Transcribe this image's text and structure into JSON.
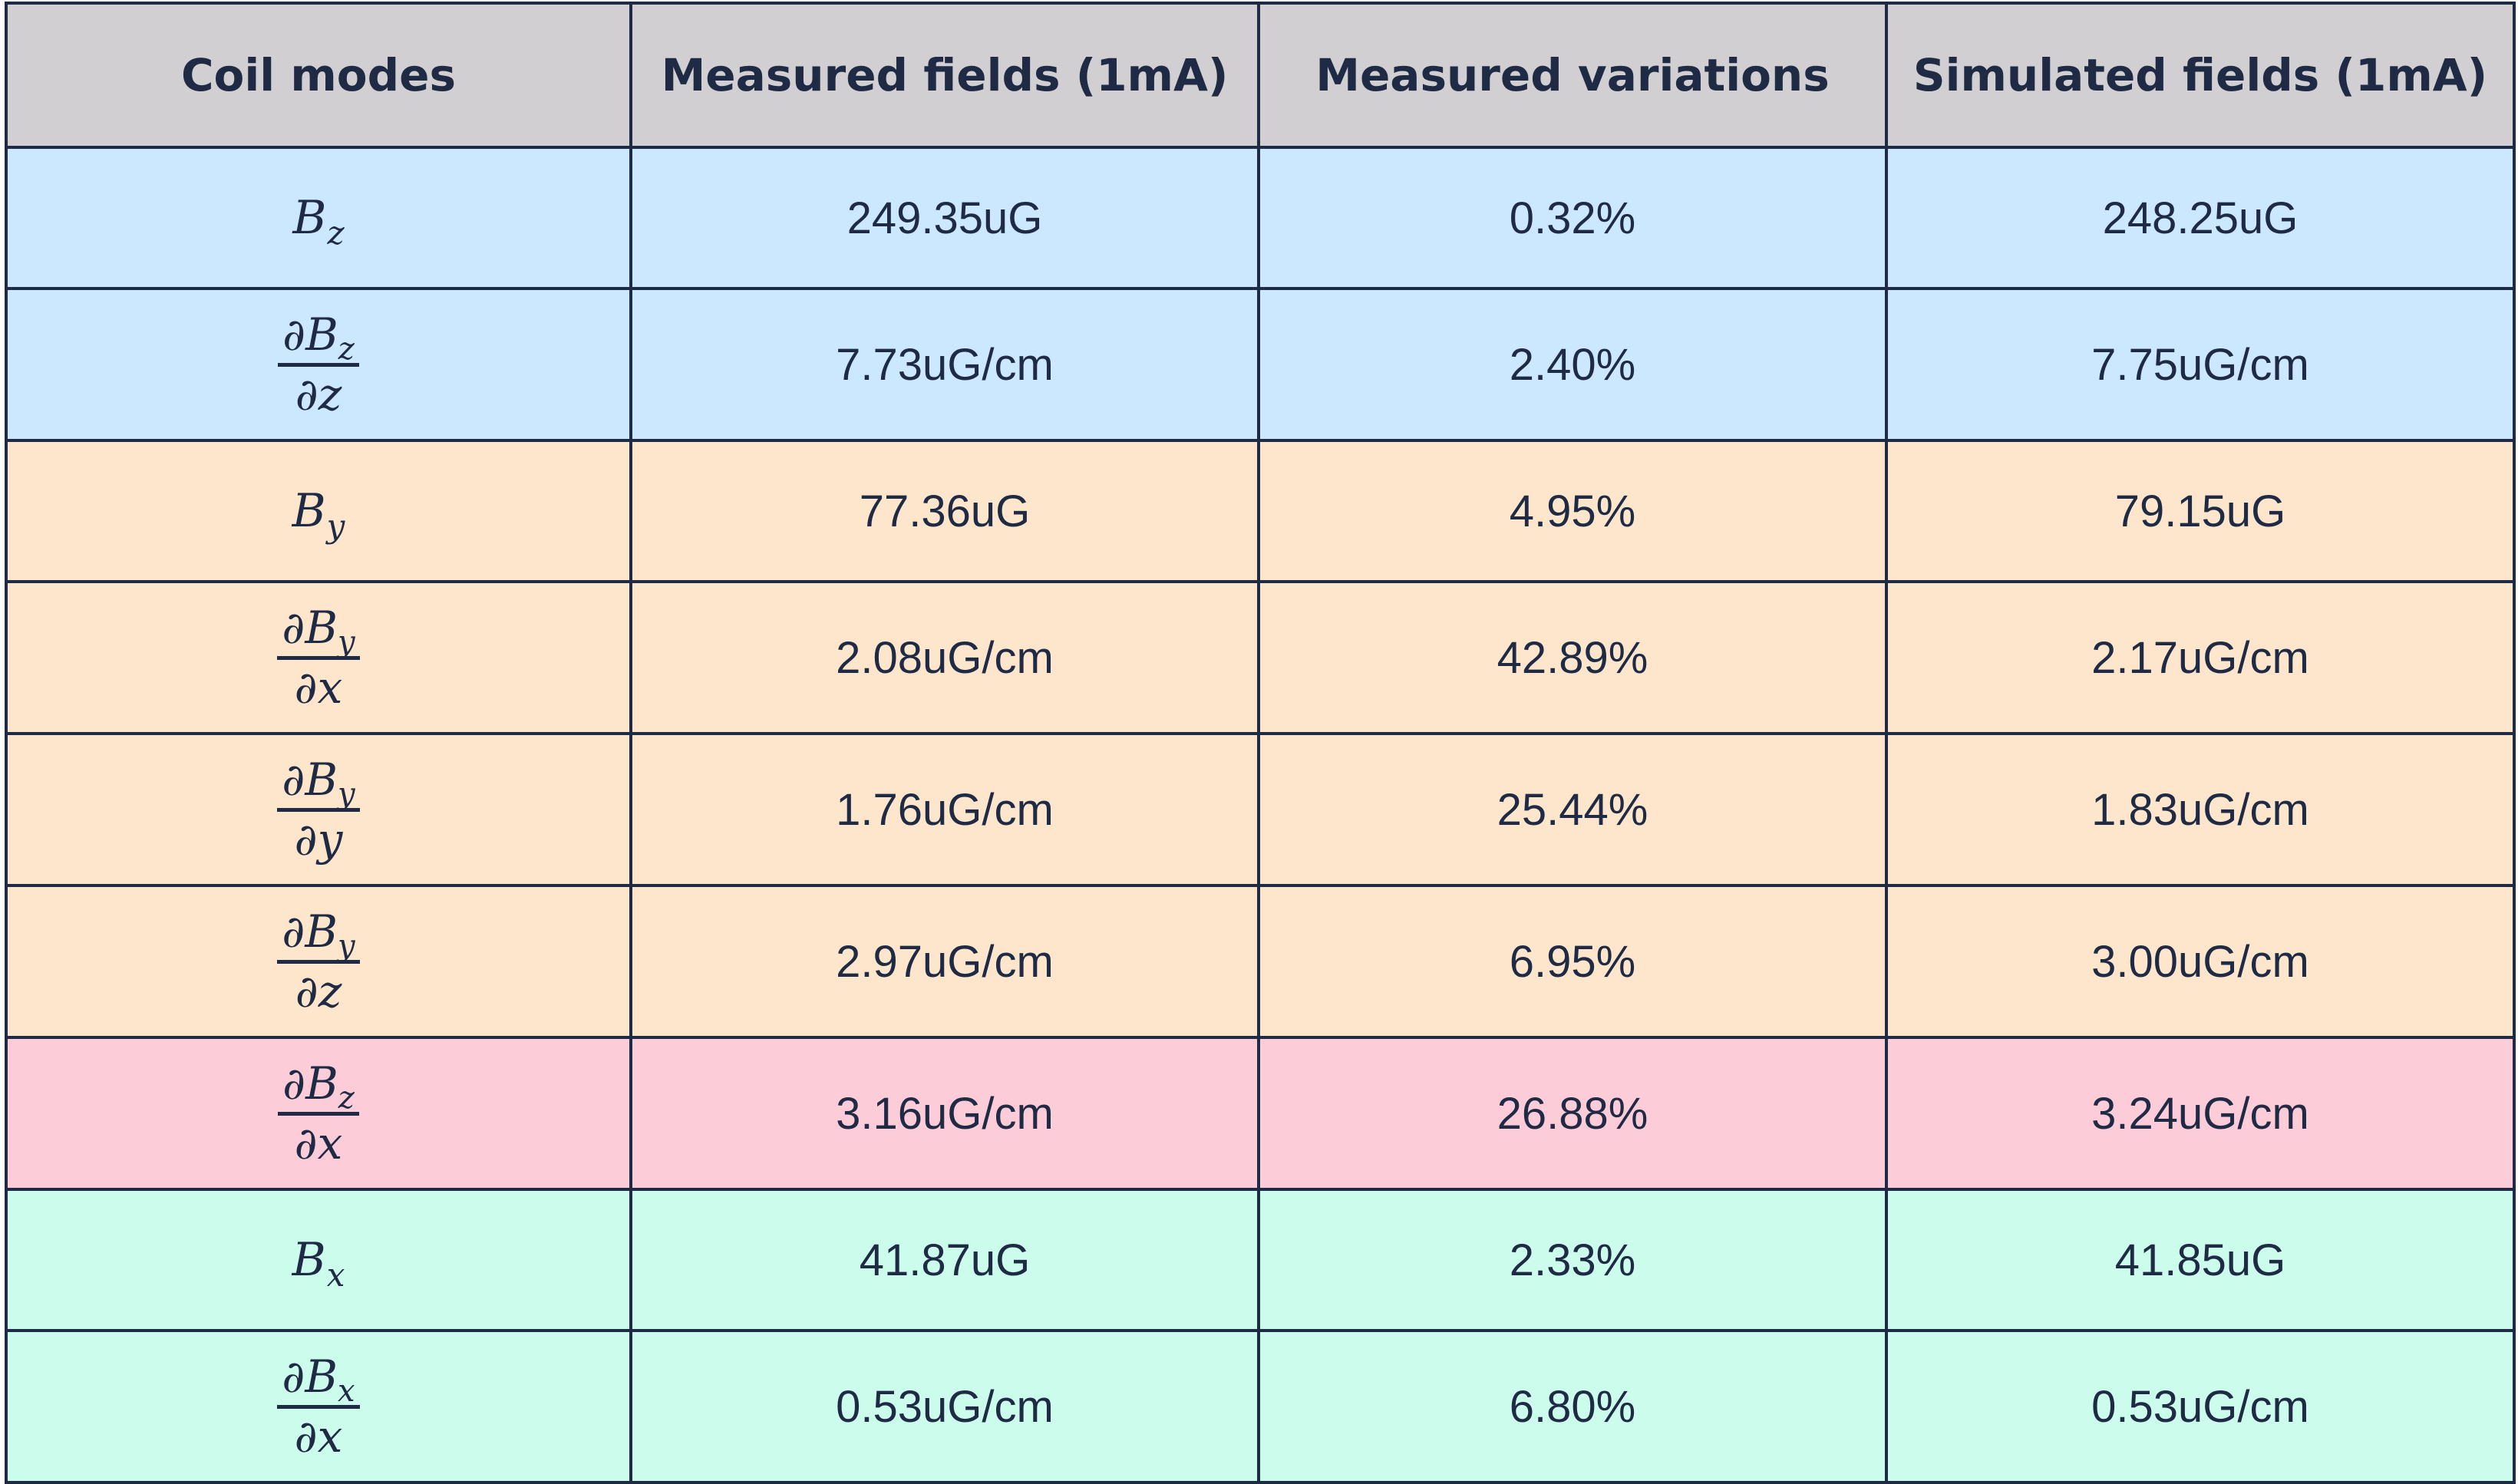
{
  "table": {
    "headers": [
      "Coil modes",
      "Measured fields (1mA)",
      "Measured variations",
      "Simulated fields (1mA)"
    ],
    "rows": [
      {
        "group": "blue",
        "mode": {
          "kind": "field",
          "sym": "B",
          "sub": "z"
        },
        "measured": "249.35uG",
        "variation": "0.32%",
        "simulated": "248.25uG"
      },
      {
        "group": "blue",
        "mode": {
          "kind": "grad",
          "sym": "∂B",
          "sub": "z",
          "den": "∂z"
        },
        "measured": "7.73uG/cm",
        "variation": "2.40%",
        "simulated": "7.75uG/cm"
      },
      {
        "group": "orange",
        "mode": {
          "kind": "field",
          "sym": "B",
          "sub": "y"
        },
        "measured": "77.36uG",
        "variation": "4.95%",
        "simulated": "79.15uG"
      },
      {
        "group": "orange",
        "mode": {
          "kind": "grad",
          "sym": "∂B",
          "sub": "y",
          "den": "∂x"
        },
        "measured": "2.08uG/cm",
        "variation": "42.89%",
        "simulated": "2.17uG/cm"
      },
      {
        "group": "orange",
        "mode": {
          "kind": "grad",
          "sym": "∂B",
          "sub": "y",
          "den": "∂y"
        },
        "measured": "1.76uG/cm",
        "variation": "25.44%",
        "simulated": "1.83uG/cm"
      },
      {
        "group": "orange",
        "mode": {
          "kind": "grad",
          "sym": "∂B",
          "sub": "y",
          "den": "∂z"
        },
        "measured": "2.97uG/cm",
        "variation": "6.95%",
        "simulated": "3.00uG/cm"
      },
      {
        "group": "pink",
        "mode": {
          "kind": "grad",
          "sym": "∂B",
          "sub": "z",
          "den": "∂x"
        },
        "measured": "3.16uG/cm",
        "variation": "26.88%",
        "simulated": "3.24uG/cm"
      },
      {
        "group": "teal",
        "mode": {
          "kind": "field",
          "sym": "B",
          "sub": "x"
        },
        "measured": "41.87uG",
        "variation": "2.33%",
        "simulated": "41.85uG"
      },
      {
        "group": "teal",
        "mode": {
          "kind": "grad",
          "sym": "∂B",
          "sub": "x",
          "den": "∂x"
        },
        "measured": "0.53uG/cm",
        "variation": "6.80%",
        "simulated": "0.53uG/cm"
      }
    ]
  },
  "colors": {
    "header_bg": "#d1cfd1",
    "blue_group": "#cce8fe",
    "orange_group": "#fde6cc",
    "pink_group": "#fdccd9",
    "teal_group": "#ccfcec",
    "border": "#1f2a44",
    "text": "#1f2a44"
  }
}
